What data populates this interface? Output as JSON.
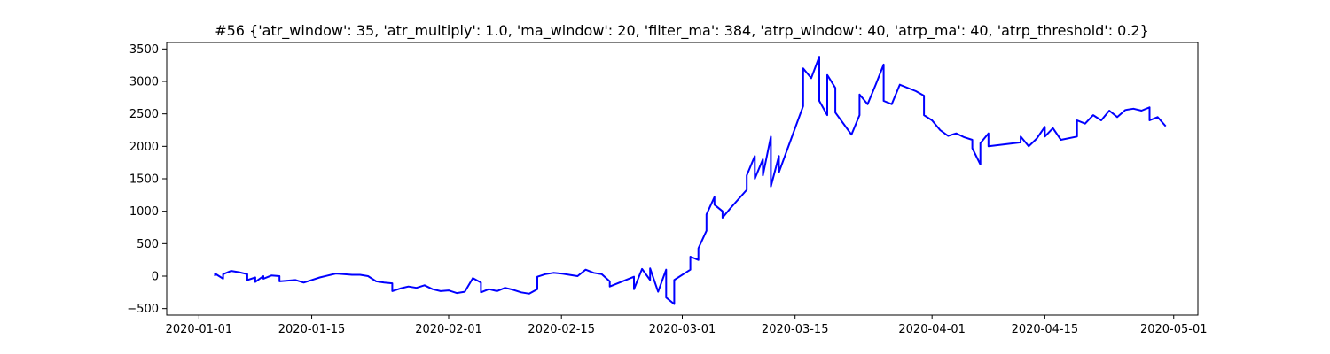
{
  "chart_data": {
    "type": "line",
    "title": "#56 {'atr_window': 35, 'atr_multiply': 1.0, 'ma_window': 20, 'filter_ma': 384, 'atrp_window': 40, 'atrp_ma': 40, 'atrp_threshold': 0.2}",
    "xlabel": "",
    "ylabel": "",
    "grid": false,
    "legend": false,
    "xlim": [
      "2019-12-28",
      "2020-05-04"
    ],
    "ylim": [
      -600,
      3600
    ],
    "x_ticks": [
      "2020-01-01",
      "2020-01-15",
      "2020-02-01",
      "2020-02-15",
      "2020-03-01",
      "2020-03-15",
      "2020-04-01",
      "2020-04-15",
      "2020-05-01"
    ],
    "y_ticks": [
      -500,
      0,
      500,
      1000,
      1500,
      2000,
      2500,
      3000,
      3500
    ],
    "series": [
      {
        "color": "#0000ff",
        "points": [
          [
            "2020-01-03",
            0
          ],
          [
            "2020-01-03",
            40
          ],
          [
            "2020-01-04",
            -40
          ],
          [
            "2020-01-04",
            30
          ],
          [
            "2020-01-05",
            80
          ],
          [
            "2020-01-06",
            60
          ],
          [
            "2020-01-07",
            30
          ],
          [
            "2020-01-07",
            -60
          ],
          [
            "2020-01-08",
            -20
          ],
          [
            "2020-01-08",
            -90
          ],
          [
            "2020-01-09",
            0
          ],
          [
            "2020-01-09",
            -40
          ],
          [
            "2020-01-10",
            10
          ],
          [
            "2020-01-11",
            0
          ],
          [
            "2020-01-11",
            -80
          ],
          [
            "2020-01-13",
            -60
          ],
          [
            "2020-01-14",
            -100
          ],
          [
            "2020-01-15",
            -60
          ],
          [
            "2020-01-16",
            -20
          ],
          [
            "2020-01-17",
            10
          ],
          [
            "2020-01-18",
            40
          ],
          [
            "2020-01-20",
            20
          ],
          [
            "2020-01-21",
            20
          ],
          [
            "2020-01-22",
            0
          ],
          [
            "2020-01-23",
            -80
          ],
          [
            "2020-01-24",
            -100
          ],
          [
            "2020-01-25",
            -110
          ],
          [
            "2020-01-25",
            -230
          ],
          [
            "2020-01-26",
            -190
          ],
          [
            "2020-01-27",
            -160
          ],
          [
            "2020-01-28",
            -180
          ],
          [
            "2020-01-29",
            -140
          ],
          [
            "2020-01-30",
            -200
          ],
          [
            "2020-01-31",
            -230
          ],
          [
            "2020-02-01",
            -220
          ],
          [
            "2020-02-02",
            -260
          ],
          [
            "2020-02-03",
            -240
          ],
          [
            "2020-02-04",
            -30
          ],
          [
            "2020-02-05",
            -100
          ],
          [
            "2020-02-05",
            -250
          ],
          [
            "2020-02-06",
            -200
          ],
          [
            "2020-02-07",
            -230
          ],
          [
            "2020-02-08",
            -180
          ],
          [
            "2020-02-09",
            -210
          ],
          [
            "2020-02-10",
            -250
          ],
          [
            "2020-02-11",
            -270
          ],
          [
            "2020-02-12",
            -200
          ],
          [
            "2020-02-12",
            -10
          ],
          [
            "2020-02-13",
            30
          ],
          [
            "2020-02-14",
            50
          ],
          [
            "2020-02-15",
            40
          ],
          [
            "2020-02-17",
            0
          ],
          [
            "2020-02-18",
            100
          ],
          [
            "2020-02-19",
            50
          ],
          [
            "2020-02-20",
            30
          ],
          [
            "2020-02-21",
            -80
          ],
          [
            "2020-02-21",
            -160
          ],
          [
            "2020-02-24",
            -10
          ],
          [
            "2020-02-24",
            -200
          ],
          [
            "2020-02-25",
            110
          ],
          [
            "2020-02-26",
            -60
          ],
          [
            "2020-02-26",
            120
          ],
          [
            "2020-02-27",
            -240
          ],
          [
            "2020-02-28",
            100
          ],
          [
            "2020-02-28",
            -330
          ],
          [
            "2020-02-29",
            -430
          ],
          [
            "2020-02-29",
            -60
          ],
          [
            "2020-03-02",
            100
          ],
          [
            "2020-03-02",
            300
          ],
          [
            "2020-03-03",
            250
          ],
          [
            "2020-03-03",
            430
          ],
          [
            "2020-03-04",
            700
          ],
          [
            "2020-03-04",
            950
          ],
          [
            "2020-03-05",
            1220
          ],
          [
            "2020-03-05",
            1100
          ],
          [
            "2020-03-06",
            1000
          ],
          [
            "2020-03-06",
            900
          ],
          [
            "2020-03-07",
            1050
          ],
          [
            "2020-03-09",
            1330
          ],
          [
            "2020-03-09",
            1550
          ],
          [
            "2020-03-10",
            1850
          ],
          [
            "2020-03-10",
            1500
          ],
          [
            "2020-03-11",
            1800
          ],
          [
            "2020-03-11",
            1550
          ],
          [
            "2020-03-12",
            2150
          ],
          [
            "2020-03-12",
            1380
          ],
          [
            "2020-03-13",
            1850
          ],
          [
            "2020-03-13",
            1600
          ],
          [
            "2020-03-16",
            2620
          ],
          [
            "2020-03-16",
            3200
          ],
          [
            "2020-03-17",
            3050
          ],
          [
            "2020-03-18",
            3380
          ],
          [
            "2020-03-18",
            2700
          ],
          [
            "2020-03-19",
            2480
          ],
          [
            "2020-03-19",
            3100
          ],
          [
            "2020-03-20",
            2900
          ],
          [
            "2020-03-20",
            2520
          ],
          [
            "2020-03-22",
            2180
          ],
          [
            "2020-03-23",
            2480
          ],
          [
            "2020-03-23",
            2800
          ],
          [
            "2020-03-24",
            2650
          ],
          [
            "2020-03-25",
            2950
          ],
          [
            "2020-03-26",
            3260
          ],
          [
            "2020-03-26",
            2700
          ],
          [
            "2020-03-27",
            2650
          ],
          [
            "2020-03-28",
            2950
          ],
          [
            "2020-03-30",
            2850
          ],
          [
            "2020-03-31",
            2780
          ],
          [
            "2020-03-31",
            2480
          ],
          [
            "2020-04-01",
            2400
          ],
          [
            "2020-04-02",
            2250
          ],
          [
            "2020-04-03",
            2160
          ],
          [
            "2020-04-04",
            2200
          ],
          [
            "2020-04-05",
            2140
          ],
          [
            "2020-04-06",
            2100
          ],
          [
            "2020-04-06",
            1970
          ],
          [
            "2020-04-07",
            1720
          ],
          [
            "2020-04-07",
            2050
          ],
          [
            "2020-04-08",
            2200
          ],
          [
            "2020-04-08",
            2000
          ],
          [
            "2020-04-12",
            2060
          ],
          [
            "2020-04-12",
            2150
          ],
          [
            "2020-04-13",
            2000
          ],
          [
            "2020-04-14",
            2120
          ],
          [
            "2020-04-15",
            2300
          ],
          [
            "2020-04-15",
            2150
          ],
          [
            "2020-04-16",
            2280
          ],
          [
            "2020-04-17",
            2100
          ],
          [
            "2020-04-19",
            2150
          ],
          [
            "2020-04-19",
            2400
          ],
          [
            "2020-04-20",
            2350
          ],
          [
            "2020-04-21",
            2480
          ],
          [
            "2020-04-22",
            2400
          ],
          [
            "2020-04-23",
            2550
          ],
          [
            "2020-04-24",
            2450
          ],
          [
            "2020-04-25",
            2560
          ],
          [
            "2020-04-26",
            2580
          ],
          [
            "2020-04-27",
            2550
          ],
          [
            "2020-04-28",
            2600
          ],
          [
            "2020-04-28",
            2400
          ],
          [
            "2020-04-29",
            2450
          ],
          [
            "2020-04-30",
            2310
          ]
        ]
      }
    ]
  }
}
